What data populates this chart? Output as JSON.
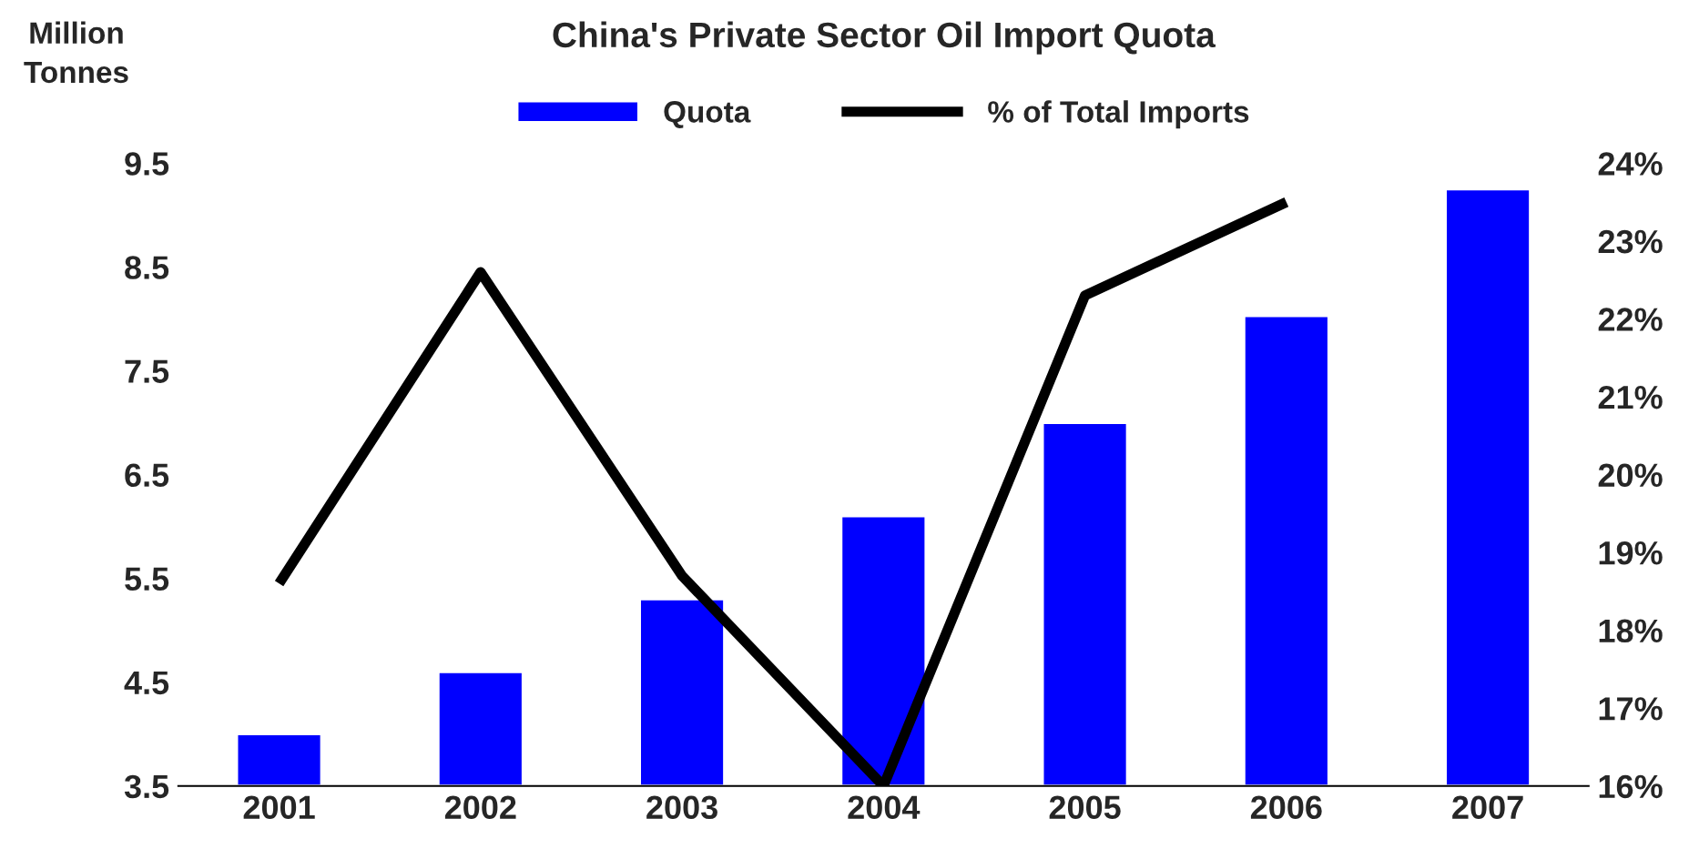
{
  "chart_data": {
    "type": "bar",
    "title": "China's Private Sector Oil Import Quota",
    "ylabel": "Million\nTonnes",
    "categories": [
      "2001",
      "2002",
      "2003",
      "2004",
      "2005",
      "2006",
      "2007"
    ],
    "series": [
      {
        "name": "Quota",
        "color": "#0000ff",
        "values": [
          4.0,
          4.6,
          5.3,
          6.1,
          7.0,
          8.03,
          9.25
        ]
      },
      {
        "name": "% of Total Imports",
        "type": "line",
        "axis": "y2",
        "color": "#000000",
        "values": [
          18.6,
          22.6,
          18.7,
          16.0,
          22.3,
          23.5,
          null
        ]
      }
    ],
    "ylim": [
      3.5,
      9.5
    ],
    "yticks": [
      3.5,
      4.5,
      5.5,
      6.5,
      7.5,
      8.5,
      9.5
    ],
    "y2lim": [
      16,
      24
    ],
    "y2ticks": [
      {
        "value": 16,
        "label": "16%"
      },
      {
        "value": 17,
        "label": "17%"
      },
      {
        "value": 18,
        "label": "18%"
      },
      {
        "value": 19,
        "label": "19%"
      },
      {
        "value": 20,
        "label": "20%"
      },
      {
        "value": 21,
        "label": "21%"
      },
      {
        "value": 22,
        "label": "22%"
      },
      {
        "value": 23,
        "label": "23%"
      },
      {
        "value": 24,
        "label": "24%"
      }
    ],
    "legend": "top",
    "grid": false,
    "marker": "none",
    "line_style": "solid"
  }
}
